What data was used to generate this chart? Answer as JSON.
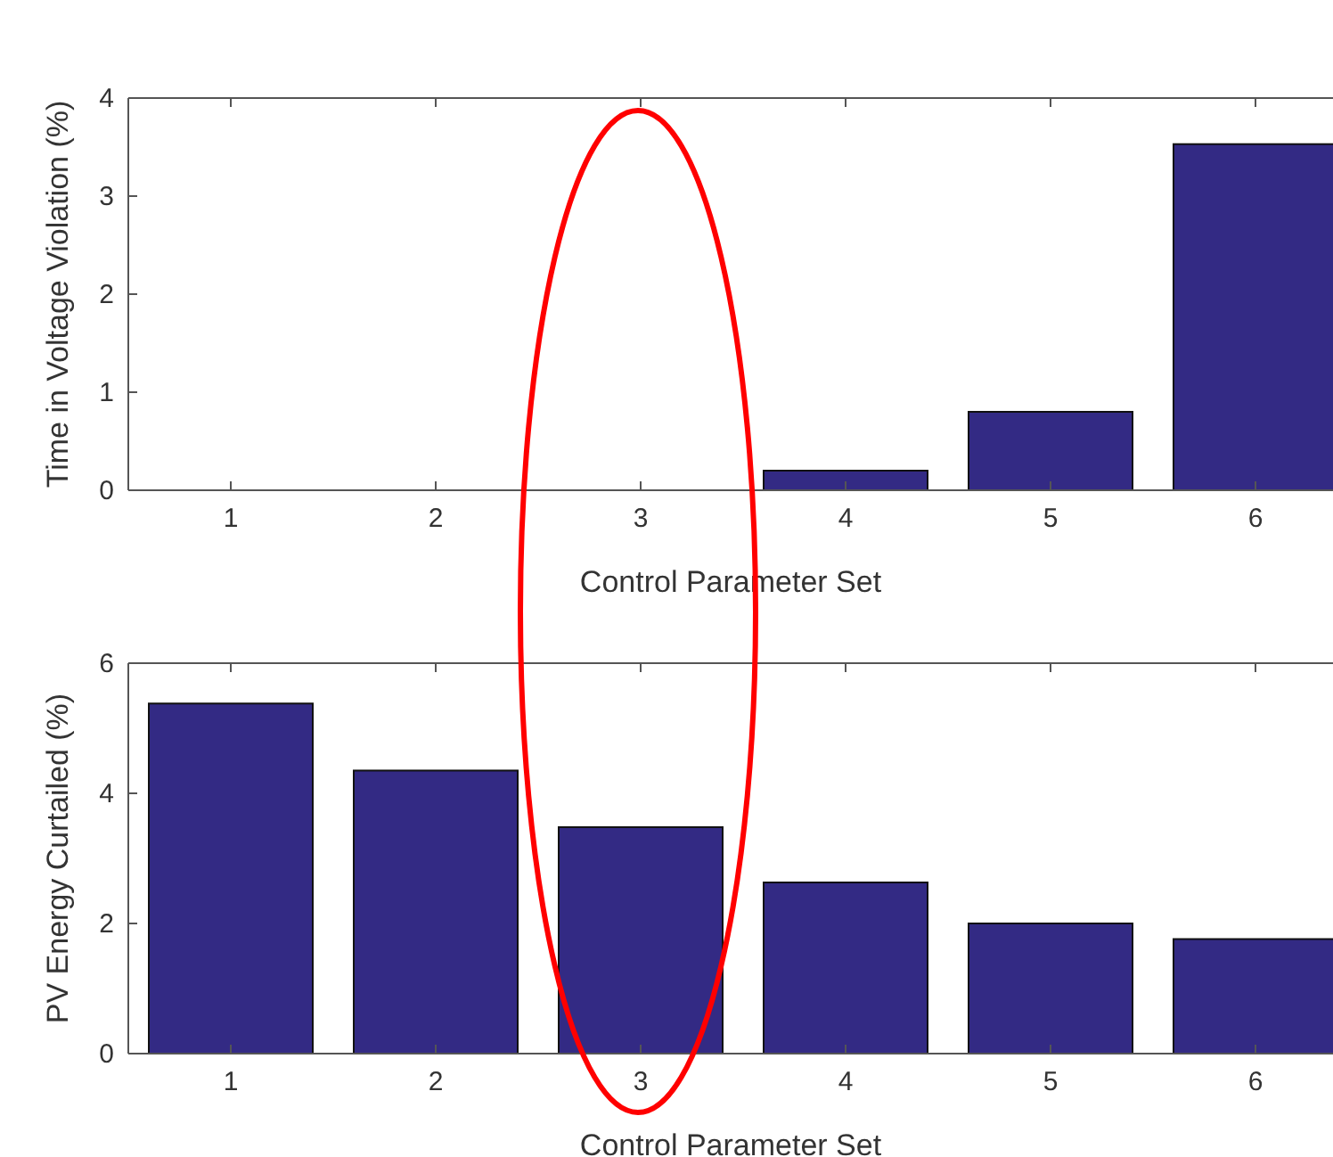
{
  "chart_data": [
    {
      "type": "bar",
      "categories": [
        "1",
        "2",
        "3",
        "4",
        "5",
        "6"
      ],
      "values": [
        0,
        0,
        0,
        0.2,
        0.8,
        3.53
      ],
      "color": "#332a84",
      "ylim": [
        0,
        4
      ],
      "yticks": [
        0,
        1,
        2,
        3,
        4
      ],
      "xlabel": "Control Parameter Set",
      "ylabel": "Time in Voltage Violation (%)"
    },
    {
      "type": "bar",
      "categories": [
        "1",
        "2",
        "3",
        "4",
        "5",
        "6"
      ],
      "values": [
        5.38,
        4.35,
        3.48,
        2.63,
        2.0,
        1.76
      ],
      "color": "#332a84",
      "ylim": [
        0,
        6
      ],
      "yticks": [
        0,
        2,
        4,
        6
      ],
      "xlabel": "Control Parameter Set",
      "ylabel": "PV Energy Curtailed (%)"
    }
  ]
}
